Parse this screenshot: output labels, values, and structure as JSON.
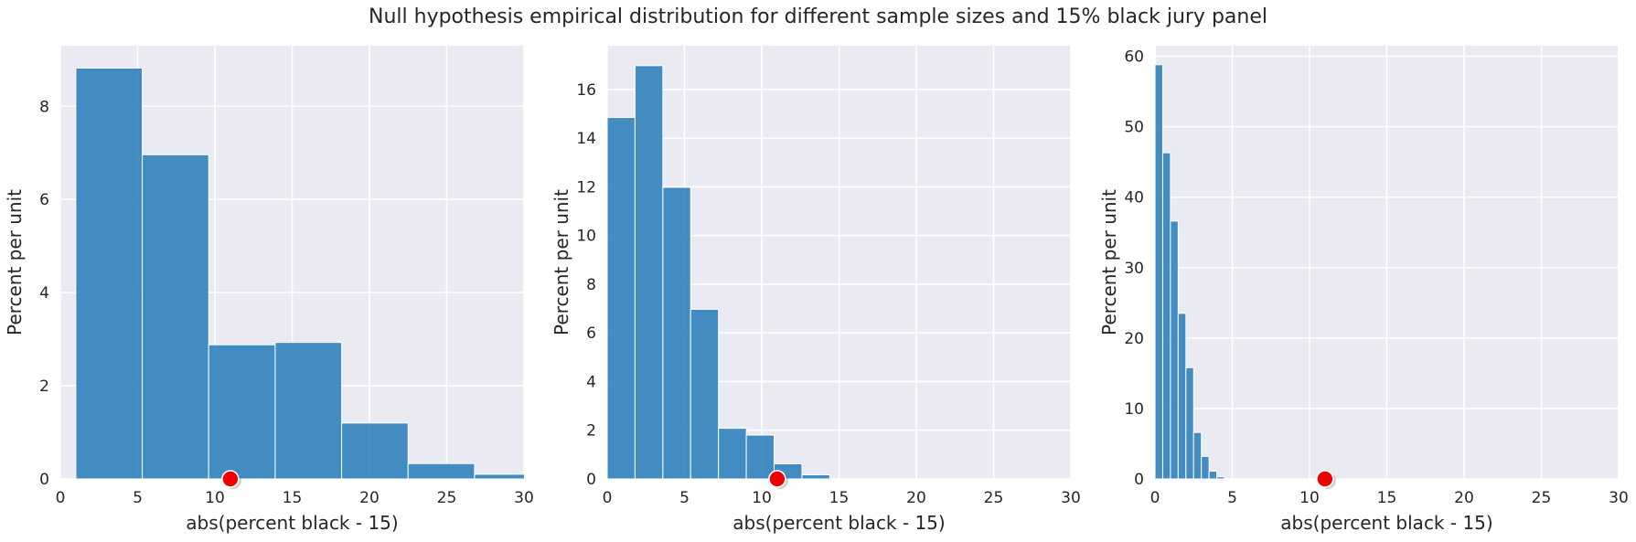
{
  "suptitle": "Null hypothesis empirical distribution for different sample sizes and 15% black jury panel",
  "colors": {
    "bar": "#3182bd",
    "bar_edge": "#ffffff",
    "axes_bg": "#eaeaf2",
    "grid": "#ffffff",
    "marker": "#ee0000"
  },
  "chart_data": [
    {
      "type": "bar",
      "title": "",
      "xlabel": "abs(percent black - 15)",
      "ylabel": "Percent per unit",
      "xlim": [
        0,
        30
      ],
      "ylim": [
        0,
        9.3
      ],
      "xticks": [
        0,
        5,
        10,
        15,
        20,
        25,
        30
      ],
      "yticks": [
        0,
        2,
        4,
        6,
        8
      ],
      "grid": true,
      "bins": [
        {
          "x0": 1,
          "x1": 5.3,
          "value": 8.82
        },
        {
          "x0": 5.3,
          "x1": 9.6,
          "value": 6.96
        },
        {
          "x0": 9.6,
          "x1": 13.9,
          "value": 2.88
        },
        {
          "x0": 13.9,
          "x1": 18.2,
          "value": 2.93
        },
        {
          "x0": 18.2,
          "x1": 22.5,
          "value": 1.2
        },
        {
          "x0": 22.5,
          "x1": 26.8,
          "value": 0.33
        },
        {
          "x0": 26.8,
          "x1": 31.1,
          "value": 0.1
        }
      ],
      "marker": {
        "x": 11,
        "y": 0
      }
    },
    {
      "type": "bar",
      "title": "",
      "xlabel": "abs(percent black - 15)",
      "ylabel": "Percent per unit",
      "xlim": [
        0,
        30
      ],
      "ylim": [
        0,
        17.8
      ],
      "xticks": [
        0,
        5,
        10,
        15,
        20,
        25,
        30
      ],
      "yticks": [
        0,
        2,
        4,
        6,
        8,
        10,
        12,
        14,
        16
      ],
      "grid": true,
      "bins": [
        {
          "x0": 0,
          "x1": 1.8,
          "value": 14.85
        },
        {
          "x0": 1.8,
          "x1": 3.6,
          "value": 16.98
        },
        {
          "x0": 3.6,
          "x1": 5.4,
          "value": 11.98
        },
        {
          "x0": 5.4,
          "x1": 7.2,
          "value": 6.97
        },
        {
          "x0": 7.2,
          "x1": 9.0,
          "value": 2.08
        },
        {
          "x0": 9.0,
          "x1": 10.8,
          "value": 1.8
        },
        {
          "x0": 10.8,
          "x1": 12.6,
          "value": 0.62
        },
        {
          "x0": 12.6,
          "x1": 14.4,
          "value": 0.17
        }
      ],
      "marker": {
        "x": 11,
        "y": 0
      }
    },
    {
      "type": "bar",
      "title": "",
      "xlabel": "abs(percent black - 15)",
      "ylabel": "Percent per unit",
      "xlim": [
        0,
        30
      ],
      "ylim": [
        0,
        61.5
      ],
      "xticks": [
        0,
        5,
        10,
        15,
        20,
        25,
        30
      ],
      "yticks": [
        0,
        10,
        20,
        30,
        40,
        50,
        60
      ],
      "grid": true,
      "bins": [
        {
          "x0": 0,
          "x1": 0.5,
          "value": 58.8
        },
        {
          "x0": 0.5,
          "x1": 1.0,
          "value": 46.3
        },
        {
          "x0": 1.0,
          "x1": 1.5,
          "value": 36.6
        },
        {
          "x0": 1.5,
          "x1": 2.0,
          "value": 23.5
        },
        {
          "x0": 2.0,
          "x1": 2.5,
          "value": 15.8
        },
        {
          "x0": 2.5,
          "x1": 3.0,
          "value": 6.6
        },
        {
          "x0": 3.0,
          "x1": 3.5,
          "value": 3.2
        },
        {
          "x0": 3.5,
          "x1": 4.0,
          "value": 1.1
        },
        {
          "x0": 4.0,
          "x1": 4.5,
          "value": 0.3
        }
      ],
      "marker": {
        "x": 11,
        "y": 0
      }
    }
  ]
}
